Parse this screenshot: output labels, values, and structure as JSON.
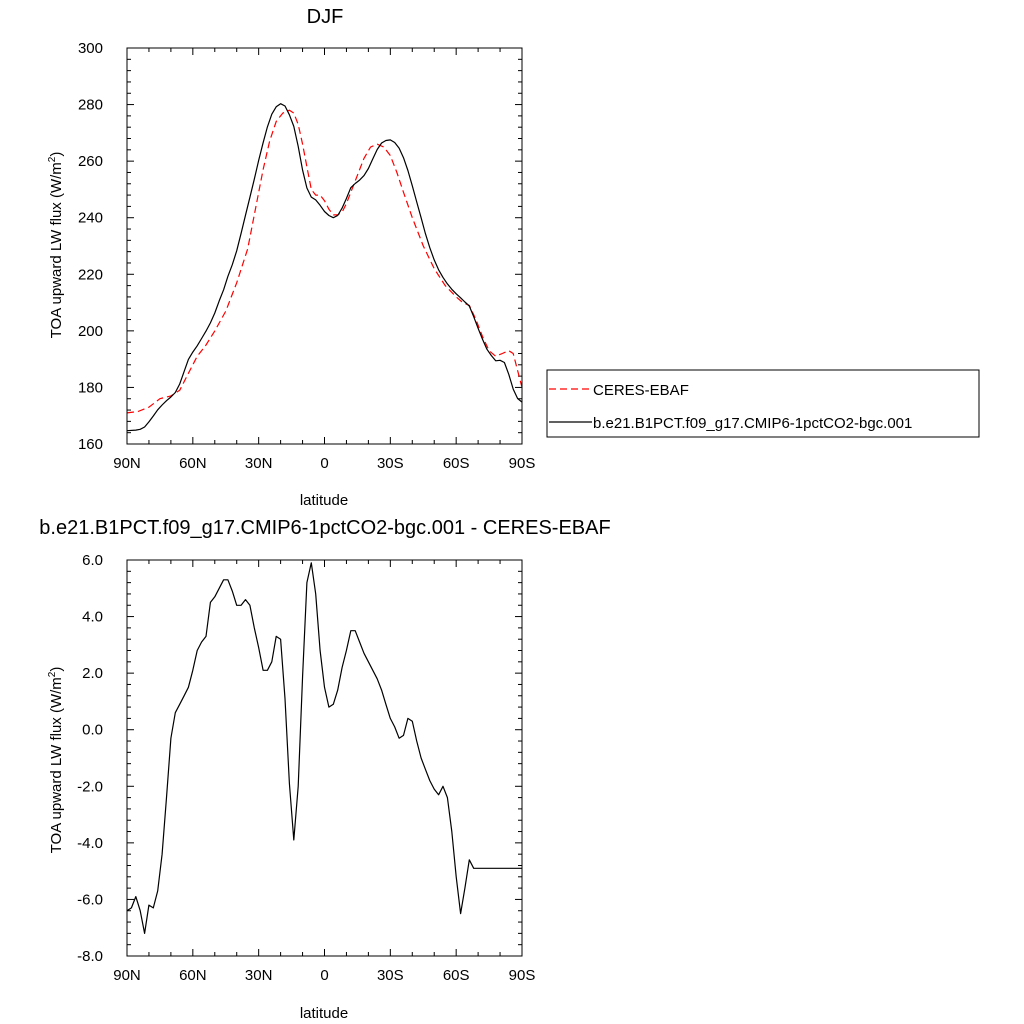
{
  "chart_data": [
    {
      "type": "line",
      "title": "DJF",
      "xlabel": "latitude",
      "ylabel": "TOA upward LW flux (W/m",
      "ylabel_sup": "2",
      "ylabel_close": ")",
      "xlim": [
        90,
        -90
      ],
      "ylim": [
        160,
        300
      ],
      "xticks": [
        {
          "value": 90,
          "label": "90N"
        },
        {
          "value": 60,
          "label": "60N"
        },
        {
          "value": 30,
          "label": "30N"
        },
        {
          "value": 0,
          "label": "0"
        },
        {
          "value": -30,
          "label": "30S"
        },
        {
          "value": -60,
          "label": "60S"
        },
        {
          "value": -90,
          "label": "90S"
        }
      ],
      "yticks": [
        {
          "value": 160,
          "label": "160"
        },
        {
          "value": 180,
          "label": "180"
        },
        {
          "value": 200,
          "label": "200"
        },
        {
          "value": 220,
          "label": "220"
        },
        {
          "value": 240,
          "label": "240"
        },
        {
          "value": 260,
          "label": "260"
        },
        {
          "value": 280,
          "label": "280"
        },
        {
          "value": 300,
          "label": "300"
        }
      ],
      "legend_position": "right",
      "series": [
        {
          "name": "CERES-EBAF",
          "color": "#ff0000",
          "style": "dashed",
          "x": [
            90,
            85,
            80,
            75,
            70,
            66,
            62,
            58,
            54,
            50,
            45,
            40,
            35,
            32,
            28,
            25,
            22,
            19,
            16,
            14,
            12,
            10,
            8,
            6,
            4,
            2,
            0,
            -2,
            -4,
            -6,
            -8,
            -10,
            -12,
            -15,
            -18,
            -21,
            -24,
            -27,
            -30,
            -33,
            -36,
            -40,
            -45,
            -50,
            -55,
            -60,
            -63,
            -66,
            -69,
            -72,
            -75,
            -78,
            -81,
            -84,
            -86,
            -88,
            -90
          ],
          "y": [
            171,
            171.5,
            173,
            176,
            177,
            179,
            185,
            191,
            195,
            200,
            207,
            217,
            229,
            241,
            257,
            267,
            274,
            277,
            278,
            277,
            273,
            266,
            258,
            250,
            248,
            248,
            246,
            243,
            241,
            241,
            242,
            245,
            249,
            255,
            261,
            265,
            266,
            265,
            262,
            256,
            249,
            240,
            230,
            222,
            216,
            212,
            210,
            209,
            204,
            198,
            193,
            191,
            192,
            193,
            192,
            186,
            180
          ]
        },
        {
          "name": "b.e21.B1PCT.f09_g17.CMIP6-1pctCO2-bgc.001",
          "color": "#000000",
          "style": "solid",
          "x": [
            90,
            86,
            84,
            82,
            80,
            78,
            76,
            74,
            72,
            70,
            68,
            66,
            64,
            62,
            60,
            58,
            56,
            54,
            52,
            50,
            48,
            46,
            44,
            42,
            40,
            38,
            36,
            34,
            32,
            30,
            28,
            26,
            24,
            22,
            20,
            18,
            16,
            14,
            12,
            10,
            8,
            6,
            4,
            2,
            0,
            -2,
            -4,
            -6,
            -8,
            -10,
            -12,
            -14,
            -16,
            -18,
            -20,
            -22,
            -24,
            -26,
            -28,
            -30,
            -32,
            -34,
            -36,
            -38,
            -40,
            -42,
            -44,
            -46,
            -48,
            -50,
            -52,
            -54,
            -56,
            -58,
            -60,
            -62,
            -64,
            -66,
            -68,
            -70,
            -72,
            -74,
            -76,
            -78,
            -80,
            -82,
            -84,
            -86,
            -88,
            -90
          ],
          "y": [
            164.7,
            164.9,
            165.2,
            166,
            167.8,
            169.9,
            172.1,
            173.8,
            175.3,
            176.6,
            178.2,
            181.2,
            185.6,
            189.9,
            192.5,
            194.7,
            197.3,
            199.9,
            202.8,
            206.3,
            210.6,
            214.5,
            219.3,
            223.4,
            228.3,
            234.5,
            240.9,
            247.2,
            253.6,
            260.3,
            266.5,
            272.1,
            276.6,
            279.2,
            280.3,
            279.5,
            276.4,
            272.3,
            265.2,
            256.8,
            250.5,
            247.3,
            246.3,
            244.4,
            242.2,
            240.8,
            240,
            240.8,
            243.4,
            246.8,
            250.6,
            252.1,
            253.3,
            254.9,
            257.4,
            260.8,
            264.1,
            266.4,
            267.3,
            267.5,
            266.6,
            264.6,
            261.2,
            256.7,
            251.3,
            245.6,
            240,
            234.4,
            229.4,
            225.1,
            221.6,
            218.9,
            216.6,
            214.7,
            213.1,
            211.7,
            210.2,
            208.8,
            205,
            200.9,
            197,
            193.5,
            191.3,
            189.4,
            189.6,
            188.8,
            184.6,
            179.4,
            176.1,
            174.8
          ]
        }
      ]
    },
    {
      "type": "line",
      "title": "b.e21.B1PCT.f09_g17.CMIP6-1pctCO2-bgc.001 - CERES-EBAF",
      "xlabel": "latitude",
      "ylabel": "TOA upward LW flux (W/m",
      "ylabel_sup": "2",
      "ylabel_close": ")",
      "xlim": [
        90,
        -90
      ],
      "ylim": [
        -8,
        6
      ],
      "xticks": [
        {
          "value": 90,
          "label": "90N"
        },
        {
          "value": 60,
          "label": "60N"
        },
        {
          "value": 30,
          "label": "30N"
        },
        {
          "value": 0,
          "label": "0"
        },
        {
          "value": -30,
          "label": "30S"
        },
        {
          "value": -60,
          "label": "60S"
        },
        {
          "value": -90,
          "label": "90S"
        }
      ],
      "yticks": [
        {
          "value": -8,
          "label": "-8.0"
        },
        {
          "value": -6,
          "label": "-6.0"
        },
        {
          "value": -4,
          "label": "-4.0"
        },
        {
          "value": -2,
          "label": "-2.0"
        },
        {
          "value": 0,
          "label": "0.0"
        },
        {
          "value": 2,
          "label": "2.0"
        },
        {
          "value": 4,
          "label": "4.0"
        },
        {
          "value": 6,
          "label": "6.0"
        }
      ],
      "series": [
        {
          "color": "#000000",
          "style": "solid",
          "x": [
            90,
            88,
            86,
            84,
            82,
            80,
            78,
            76,
            74,
            72,
            70,
            68,
            66,
            64,
            62,
            60,
            58,
            56,
            54,
            52,
            50,
            48,
            46,
            44,
            42,
            40,
            38,
            36,
            34,
            32,
            30,
            28,
            26,
            24,
            22,
            20,
            18,
            16,
            14,
            12,
            10,
            8,
            6,
            4,
            2,
            0,
            -2,
            -4,
            -6,
            -8,
            -10,
            -12,
            -14,
            -16,
            -18,
            -20,
            -22,
            -24,
            -26,
            -28,
            -30,
            -32,
            -34,
            -36,
            -38,
            -40,
            -42,
            -44,
            -46,
            -48,
            -50,
            -52,
            -54,
            -56,
            -58,
            -60,
            -62,
            -64,
            -66,
            -68,
            -70,
            -72,
            -74,
            -76,
            -78,
            -80,
            -82,
            -84,
            -86,
            -88,
            -90
          ],
          "y": [
            -6.4,
            -6.3,
            -5.9,
            -6.4,
            -7.2,
            -6.2,
            -6.3,
            -5.7,
            -4.4,
            -2.4,
            -0.3,
            0.6,
            0.9,
            1.2,
            1.5,
            2.1,
            2.8,
            3.1,
            3.3,
            4.5,
            4.7,
            5,
            5.3,
            5.3,
            4.9,
            4.4,
            4.4,
            4.6,
            4.4,
            3.6,
            2.9,
            2.1,
            2.1,
            2.4,
            3.3,
            3.2,
            1.1,
            -1.9,
            -3.9,
            -2,
            1.9,
            5.2,
            5.9,
            4.8,
            2.8,
            1.5,
            0.8,
            0.9,
            1.4,
            2.2,
            2.8,
            3.5,
            3.5,
            3.1,
            2.7,
            2.4,
            2.1,
            1.8,
            1.4,
            0.9,
            0.4,
            0.1,
            -0.3,
            -0.2,
            0.4,
            0.3,
            -0.4,
            -1,
            -1.4,
            -1.8,
            -2.1,
            -2.3,
            -2,
            -2.4,
            -3.6,
            -5.2,
            -6.5,
            -5.6,
            -4.6,
            -4.9,
            -4.9,
            -4.9,
            -4.9,
            -4.9,
            -4.9,
            -4.9,
            -4.9,
            -4.9,
            -4.9,
            -4.9,
            -4.9
          ]
        }
      ]
    }
  ]
}
